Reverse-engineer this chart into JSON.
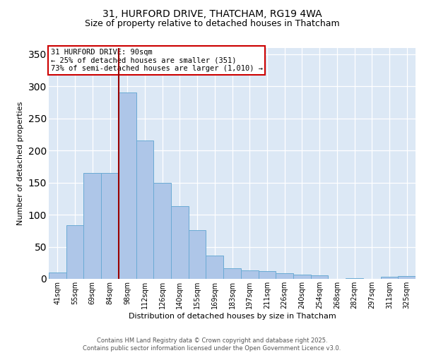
{
  "title_line1": "31, HURFORD DRIVE, THATCHAM, RG19 4WA",
  "title_line2": "Size of property relative to detached houses in Thatcham",
  "xlabel": "Distribution of detached houses by size in Thatcham",
  "ylabel": "Number of detached properties",
  "categories": [
    "41sqm",
    "55sqm",
    "69sqm",
    "84sqm",
    "98sqm",
    "112sqm",
    "126sqm",
    "140sqm",
    "155sqm",
    "169sqm",
    "183sqm",
    "197sqm",
    "211sqm",
    "226sqm",
    "240sqm",
    "254sqm",
    "268sqm",
    "282sqm",
    "297sqm",
    "311sqm",
    "325sqm"
  ],
  "values": [
    10,
    84,
    165,
    165,
    290,
    215,
    150,
    113,
    76,
    36,
    17,
    13,
    12,
    9,
    7,
    5,
    0,
    1,
    0,
    3,
    4
  ],
  "bar_color": "#aec6e8",
  "bar_edge_color": "#6aaad4",
  "vline_x": 3.5,
  "vline_color": "#990000",
  "annotation_text": "31 HURFORD DRIVE: 90sqm\n← 25% of detached houses are smaller (351)\n73% of semi-detached houses are larger (1,010) →",
  "annotation_box_color": "#ffffff",
  "annotation_box_edge": "#cc0000",
  "ylim": [
    0,
    360
  ],
  "yticks": [
    0,
    50,
    100,
    150,
    200,
    250,
    300,
    350
  ],
  "footer_text": "Contains HM Land Registry data © Crown copyright and database right 2025.\nContains public sector information licensed under the Open Government Licence v3.0.",
  "bg_color": "#dce8f5",
  "fig_bg_color": "#ffffff",
  "title_fontsize": 10,
  "subtitle_fontsize": 9,
  "xlabel_fontsize": 8,
  "ylabel_fontsize": 8,
  "tick_fontsize": 7,
  "footer_fontsize": 6,
  "annot_fontsize": 7.5
}
